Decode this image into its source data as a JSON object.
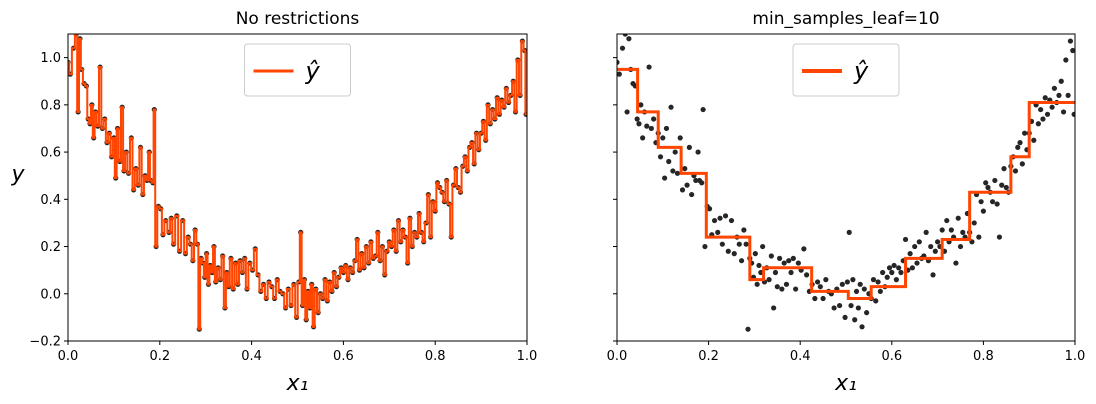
{
  "chart_data": [
    {
      "type": "line",
      "title": "No restrictions",
      "xlabel": "x₁",
      "ylabel": "y",
      "xlim": [
        0.0,
        1.0
      ],
      "ylim": [
        -0.2,
        1.1
      ],
      "x_ticks": [
        "0.0",
        "0.2",
        "0.4",
        "0.6",
        "0.8",
        "1.0"
      ],
      "y_ticks": [
        "−0.2",
        "0.0",
        "0.2",
        "0.4",
        "0.6",
        "0.8",
        "1.0"
      ],
      "legend": {
        "label": "ŷ",
        "placement": "top-center"
      },
      "grid": false,
      "series": [
        {
          "name": "ŷ",
          "kind": "step-line",
          "color": "#ff4500",
          "points_ref": "points"
        }
      ]
    },
    {
      "type": "line",
      "title": "min_samples_leaf=10",
      "xlabel": "x₁",
      "ylabel": "",
      "xlim": [
        0.0,
        1.0
      ],
      "ylim": [
        -0.2,
        1.1
      ],
      "x_ticks": [
        "0.0",
        "0.2",
        "0.4",
        "0.6",
        "0.8",
        "1.0"
      ],
      "y_ticks": [],
      "legend": {
        "label": "ŷ",
        "placement": "top-center"
      },
      "grid": false,
      "series": [
        {
          "name": "ŷ",
          "kind": "step",
          "color": "#ff4500",
          "steps": [
            {
              "x0": 0.0,
              "x1": 0.045,
              "y": 0.95
            },
            {
              "x0": 0.045,
              "x1": 0.09,
              "y": 0.77
            },
            {
              "x0": 0.09,
              "x1": 0.14,
              "y": 0.62
            },
            {
              "x0": 0.14,
              "x1": 0.195,
              "y": 0.51
            },
            {
              "x0": 0.195,
              "x1": 0.29,
              "y": 0.24
            },
            {
              "x0": 0.29,
              "x1": 0.32,
              "y": 0.06
            },
            {
              "x0": 0.32,
              "x1": 0.425,
              "y": 0.11
            },
            {
              "x0": 0.425,
              "x1": 0.505,
              "y": 0.01
            },
            {
              "x0": 0.505,
              "x1": 0.555,
              "y": -0.02
            },
            {
              "x0": 0.555,
              "x1": 0.63,
              "y": 0.03
            },
            {
              "x0": 0.63,
              "x1": 0.71,
              "y": 0.15
            },
            {
              "x0": 0.71,
              "x1": 0.77,
              "y": 0.23
            },
            {
              "x0": 0.77,
              "x1": 0.86,
              "y": 0.43
            },
            {
              "x0": 0.86,
              "x1": 0.9,
              "y": 0.58
            },
            {
              "x0": 0.9,
              "x1": 1.0,
              "y": 0.81
            }
          ]
        }
      ]
    }
  ],
  "points": [
    [
      0.0,
      0.98
    ],
    [
      0.005,
      0.93
    ],
    [
      0.012,
      1.04
    ],
    [
      0.018,
      1.1
    ],
    [
      0.022,
      0.77
    ],
    [
      0.026,
      1.08
    ],
    [
      0.03,
      0.95
    ],
    [
      0.035,
      0.89
    ],
    [
      0.04,
      0.88
    ],
    [
      0.044,
      0.74
    ],
    [
      0.048,
      0.72
    ],
    [
      0.052,
      0.8
    ],
    [
      0.056,
      0.66
    ],
    [
      0.06,
      0.77
    ],
    [
      0.065,
      0.71
    ],
    [
      0.07,
      0.96
    ],
    [
      0.075,
      0.7
    ],
    [
      0.08,
      0.74
    ],
    [
      0.085,
      0.64
    ],
    [
      0.09,
      0.68
    ],
    [
      0.095,
      0.58
    ],
    [
      0.1,
      0.66
    ],
    [
      0.104,
      0.49
    ],
    [
      0.108,
      0.7
    ],
    [
      0.113,
      0.56
    ],
    [
      0.118,
      0.79
    ],
    [
      0.122,
      0.52
    ],
    [
      0.127,
      0.6
    ],
    [
      0.132,
      0.51
    ],
    [
      0.138,
      0.66
    ],
    [
      0.143,
      0.44
    ],
    [
      0.148,
      0.53
    ],
    [
      0.153,
      0.46
    ],
    [
      0.158,
      0.62
    ],
    [
      0.163,
      0.42
    ],
    [
      0.168,
      0.5
    ],
    [
      0.172,
      0.48
    ],
    [
      0.177,
      0.6
    ],
    [
      0.18,
      0.48
    ],
    [
      0.185,
      0.47
    ],
    [
      0.188,
      0.78
    ],
    [
      0.192,
      0.2
    ],
    [
      0.197,
      0.37
    ],
    [
      0.202,
      0.36
    ],
    [
      0.207,
      0.25
    ],
    [
      0.213,
      0.31
    ],
    [
      0.22,
      0.26
    ],
    [
      0.225,
      0.32
    ],
    [
      0.23,
      0.21
    ],
    [
      0.237,
      0.33
    ],
    [
      0.243,
      0.18
    ],
    [
      0.25,
      0.31
    ],
    [
      0.256,
      0.17
    ],
    [
      0.262,
      0.24
    ],
    [
      0.267,
      0.21
    ],
    [
      0.272,
      0.14
    ],
    [
      0.277,
      0.27
    ],
    [
      0.282,
      0.21
    ],
    [
      0.286,
      -0.15
    ],
    [
      0.29,
      0.15
    ],
    [
      0.294,
      0.13
    ],
    [
      0.298,
      0.07
    ],
    [
      0.302,
      0.17
    ],
    [
      0.306,
      0.04
    ],
    [
      0.31,
      0.12
    ],
    [
      0.314,
      0.09
    ],
    [
      0.318,
      0.2
    ],
    [
      0.322,
      0.05
    ],
    [
      0.327,
      0.11
    ],
    [
      0.332,
      0.06
    ],
    [
      0.337,
      0.16
    ],
    [
      0.342,
      -0.06
    ],
    [
      0.346,
      0.09
    ],
    [
      0.35,
      0.03
    ],
    [
      0.355,
      0.15
    ],
    [
      0.36,
      0.02
    ],
    [
      0.365,
      0.13
    ],
    [
      0.37,
      0.04
    ],
    [
      0.375,
      0.14
    ],
    [
      0.38,
      0.09
    ],
    [
      0.385,
      0.15
    ],
    [
      0.39,
      0.02
    ],
    [
      0.396,
      0.13
    ],
    [
      0.402,
      0.1
    ],
    [
      0.408,
      0.19
    ],
    [
      0.414,
      0.08
    ],
    [
      0.42,
      0.01
    ],
    [
      0.426,
      0.04
    ],
    [
      0.432,
      -0.02
    ],
    [
      0.438,
      0.05
    ],
    [
      0.444,
      0.03
    ],
    [
      0.45,
      -0.02
    ],
    [
      0.456,
      0.06
    ],
    [
      0.462,
      0.01
    ],
    [
      0.468,
      0.0
    ],
    [
      0.474,
      -0.06
    ],
    [
      0.48,
      0.02
    ],
    [
      0.486,
      -0.05
    ],
    [
      0.492,
      0.04
    ],
    [
      0.498,
      -0.1
    ],
    [
      0.503,
      0.05
    ],
    [
      0.507,
      0.26
    ],
    [
      0.511,
      -0.05
    ],
    [
      0.515,
      0.06
    ],
    [
      0.519,
      -0.11
    ],
    [
      0.523,
      0.01
    ],
    [
      0.527,
      -0.06
    ],
    [
      0.531,
      0.04
    ],
    [
      0.535,
      -0.14
    ],
    [
      0.54,
      0.02
    ],
    [
      0.545,
      -0.08
    ],
    [
      0.55,
      0.0
    ],
    [
      0.555,
      -0.02
    ],
    [
      0.56,
      0.06
    ],
    [
      0.565,
      -0.03
    ],
    [
      0.57,
      0.05
    ],
    [
      0.575,
      0.01
    ],
    [
      0.58,
      0.09
    ],
    [
      0.585,
      0.03
    ],
    [
      0.59,
      0.07
    ],
    [
      0.595,
      0.11
    ],
    [
      0.6,
      0.09
    ],
    [
      0.605,
      0.12
    ],
    [
      0.61,
      0.06
    ],
    [
      0.615,
      0.11
    ],
    [
      0.62,
      0.09
    ],
    [
      0.625,
      0.14
    ],
    [
      0.63,
      0.23
    ],
    [
      0.635,
      0.1
    ],
    [
      0.64,
      0.17
    ],
    [
      0.645,
      0.11
    ],
    [
      0.65,
      0.2
    ],
    [
      0.655,
      0.13
    ],
    [
      0.66,
      0.22
    ],
    [
      0.665,
      0.15
    ],
    [
      0.67,
      0.16
    ],
    [
      0.675,
      0.26
    ],
    [
      0.68,
      0.14
    ],
    [
      0.685,
      0.2
    ],
    [
      0.69,
      0.08
    ],
    [
      0.695,
      0.18
    ],
    [
      0.7,
      0.22
    ],
    [
      0.705,
      0.2
    ],
    [
      0.71,
      0.27
    ],
    [
      0.715,
      0.18
    ],
    [
      0.72,
      0.31
    ],
    [
      0.725,
      0.22
    ],
    [
      0.73,
      0.27
    ],
    [
      0.735,
      0.24
    ],
    [
      0.74,
      0.13
    ],
    [
      0.745,
      0.32
    ],
    [
      0.75,
      0.2
    ],
    [
      0.755,
      0.26
    ],
    [
      0.76,
      0.24
    ],
    [
      0.765,
      0.34
    ],
    [
      0.77,
      0.26
    ],
    [
      0.775,
      0.22
    ],
    [
      0.78,
      0.3
    ],
    [
      0.785,
      0.42
    ],
    [
      0.79,
      0.24
    ],
    [
      0.795,
      0.39
    ],
    [
      0.8,
      0.35
    ],
    [
      0.805,
      0.47
    ],
    [
      0.81,
      0.45
    ],
    [
      0.815,
      0.43
    ],
    [
      0.82,
      0.39
    ],
    [
      0.825,
      0.48
    ],
    [
      0.83,
      0.38
    ],
    [
      0.835,
      0.24
    ],
    [
      0.84,
      0.46
    ],
    [
      0.845,
      0.53
    ],
    [
      0.85,
      0.45
    ],
    [
      0.855,
      0.43
    ],
    [
      0.86,
      0.54
    ],
    [
      0.865,
      0.58
    ],
    [
      0.87,
      0.52
    ],
    [
      0.875,
      0.62
    ],
    [
      0.88,
      0.64
    ],
    [
      0.885,
      0.55
    ],
    [
      0.89,
      0.68
    ],
    [
      0.895,
      0.61
    ],
    [
      0.9,
      0.68
    ],
    [
      0.905,
      0.73
    ],
    [
      0.91,
      0.65
    ],
    [
      0.915,
      0.8
    ],
    [
      0.92,
      0.72
    ],
    [
      0.925,
      0.78
    ],
    [
      0.93,
      0.74
    ],
    [
      0.935,
      0.83
    ],
    [
      0.94,
      0.76
    ],
    [
      0.945,
      0.82
    ],
    [
      0.95,
      0.79
    ],
    [
      0.955,
      0.87
    ],
    [
      0.96,
      0.81
    ],
    [
      0.965,
      0.84
    ],
    [
      0.97,
      0.9
    ],
    [
      0.975,
      0.77
    ],
    [
      0.98,
      0.99
    ],
    [
      0.985,
      0.84
    ],
    [
      0.99,
      1.07
    ],
    [
      0.995,
      1.03
    ],
    [
      0.998,
      0.76
    ],
    [
      1.0,
      0.76
    ]
  ]
}
